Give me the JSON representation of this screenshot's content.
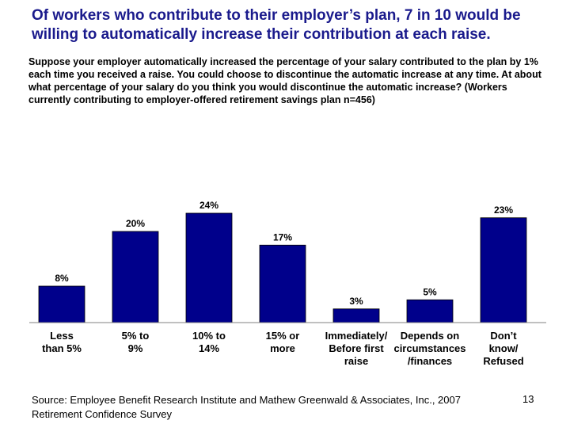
{
  "title": "Of workers who contribute to their employer’s plan, 7 in 10 would be willing to automatically increase their contribution at each raise.",
  "question": "Suppose your employer automatically increased the percentage of your salary contributed to the plan by 1% each time you received a raise.  You could choose to discontinue the automatic increase at any time.  At about what percentage of your salary do you think you would discontinue the automatic increase?  (Workers currently contributing to employer-offered retirement savings plan n=456)",
  "chart_data": {
    "type": "bar",
    "categories": [
      "Less than 5%",
      "5% to 9%",
      "10% to 14%",
      "15% or more",
      "Immediately/ Before first raise",
      "Depends on circumstances /finances",
      "Don’t know/ Refused"
    ],
    "category_lines": [
      [
        "Less",
        "than 5%"
      ],
      [
        "5% to",
        "9%"
      ],
      [
        "10% to",
        "14%"
      ],
      [
        "15% or",
        "more"
      ],
      [
        "Immediately/",
        "Before first",
        "raise"
      ],
      [
        "Depends on",
        "circumstances",
        "/finances"
      ],
      [
        "Don’t",
        "know/",
        "Refused"
      ]
    ],
    "values": [
      8,
      20,
      24,
      17,
      3,
      5,
      23
    ],
    "labels": [
      "8%",
      "20%",
      "24%",
      "17%",
      "3%",
      "5%",
      "23%"
    ],
    "ylim": [
      0,
      24
    ],
    "bar_color": "#00008b"
  },
  "source": "Source: Employee Benefit Research Institute and Mathew Greenwald & Associates, Inc., 2007 Retirement Confidence Survey",
  "page_number": "13"
}
